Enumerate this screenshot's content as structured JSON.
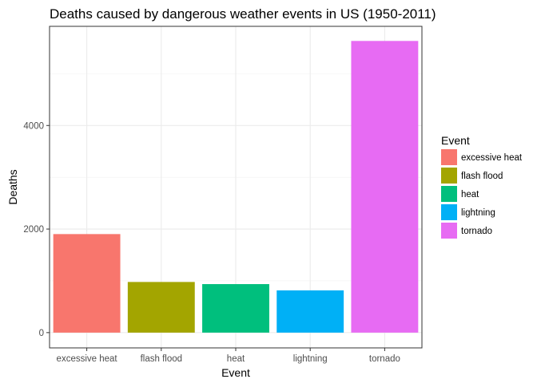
{
  "chart_data": {
    "type": "bar",
    "title": "Deaths caused by dangerous weather events in US (1950-2011)",
    "xlabel": "Event",
    "ylabel": "Deaths",
    "categories": [
      "excessive heat",
      "flash flood",
      "heat",
      "lightning",
      "tornado"
    ],
    "values": [
      1903,
      978,
      937,
      816,
      5633
    ],
    "colors": [
      "#F8766D",
      "#A3A500",
      "#00BF7D",
      "#00B0F6",
      "#E76BF3"
    ],
    "ylim": [
      0,
      5915
    ],
    "yticks": [
      0,
      2000,
      4000
    ],
    "ytick_labels": [
      "0",
      "2000",
      "4000"
    ],
    "grid": true,
    "legend": {
      "title": "Event",
      "position": "right",
      "items": [
        "excessive heat",
        "flash flood",
        "heat",
        "lightning",
        "tornado"
      ]
    }
  }
}
